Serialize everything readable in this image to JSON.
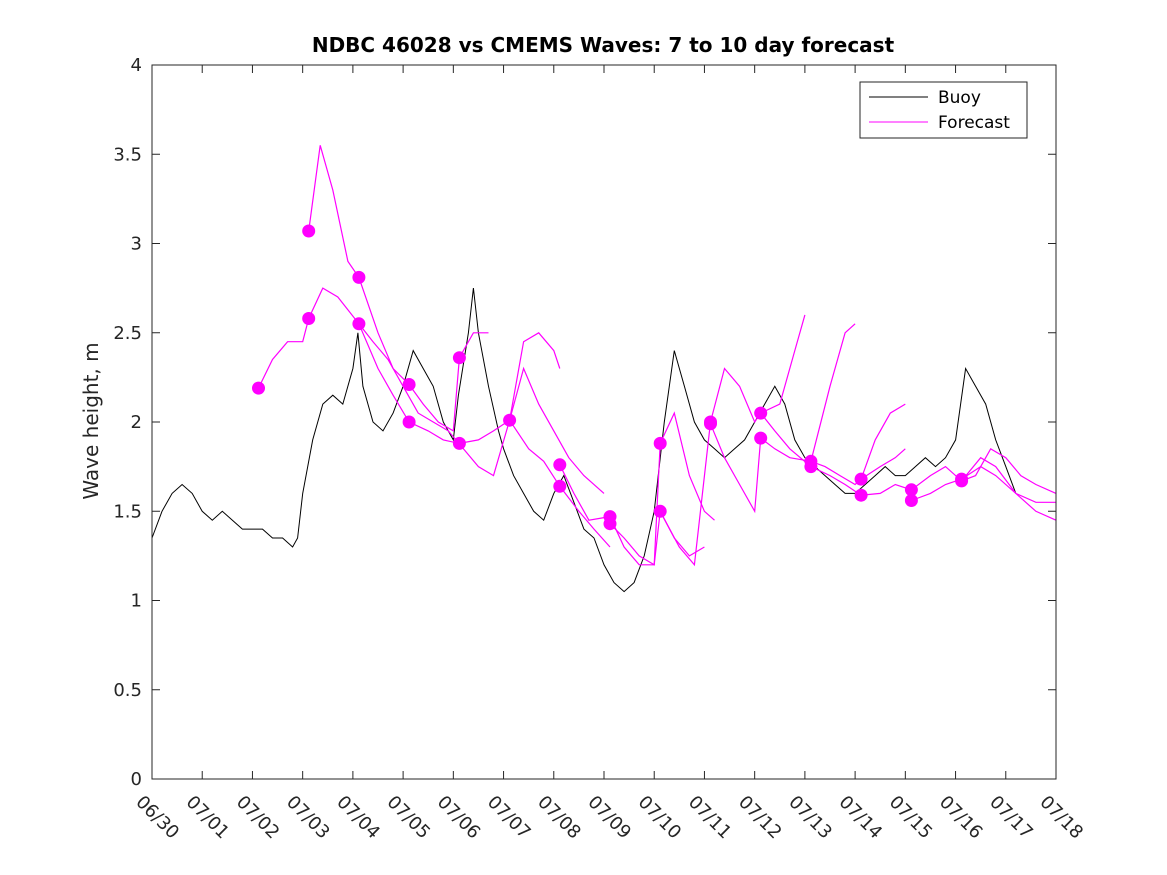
{
  "chart_data": {
    "type": "line",
    "title": "NDBC 46028 vs CMEMS Waves: 7 to 10 day forecast",
    "xlabel": "",
    "ylabel": "Wave height, m",
    "xlim": [
      0,
      18
    ],
    "ylim": [
      0,
      4
    ],
    "x_ticks": [
      0,
      1,
      2,
      3,
      4,
      5,
      6,
      7,
      8,
      9,
      10,
      11,
      12,
      13,
      14,
      15,
      16,
      17,
      18
    ],
    "x_tick_labels": [
      "06/30",
      "07/01",
      "07/02",
      "07/03",
      "07/04",
      "07/05",
      "07/06",
      "07/07",
      "07/08",
      "07/09",
      "07/10",
      "07/11",
      "07/12",
      "07/13",
      "07/14",
      "07/15",
      "07/16",
      "07/17",
      "07/18"
    ],
    "y_ticks": [
      0,
      0.5,
      1,
      1.5,
      2,
      2.5,
      3,
      3.5,
      4
    ],
    "y_tick_labels": [
      "0",
      "0.5",
      "1",
      "1.5",
      "2",
      "2.5",
      "3",
      "3.5",
      "4"
    ],
    "grid": false,
    "legend": {
      "placement": "top-right",
      "entries": [
        {
          "label": "Buoy",
          "color": "#000000"
        },
        {
          "label": "Forecast",
          "color": "#ff00ff"
        }
      ]
    },
    "colors": {
      "buoy": "#000000",
      "forecast": "#ff00ff"
    },
    "series": [
      {
        "name": "Buoy",
        "color": "#000000",
        "points": [
          [
            0,
            1.35
          ],
          [
            0.2,
            1.5
          ],
          [
            0.4,
            1.6
          ],
          [
            0.6,
            1.65
          ],
          [
            0.8,
            1.6
          ],
          [
            1.0,
            1.5
          ],
          [
            1.2,
            1.45
          ],
          [
            1.4,
            1.5
          ],
          [
            1.6,
            1.45
          ],
          [
            1.8,
            1.4
          ],
          [
            2.0,
            1.4
          ],
          [
            2.2,
            1.4
          ],
          [
            2.4,
            1.35
          ],
          [
            2.6,
            1.35
          ],
          [
            2.8,
            1.3
          ],
          [
            2.9,
            1.35
          ],
          [
            3.0,
            1.6
          ],
          [
            3.2,
            1.9
          ],
          [
            3.4,
            2.1
          ],
          [
            3.6,
            2.15
          ],
          [
            3.8,
            2.1
          ],
          [
            4.0,
            2.3
          ],
          [
            4.1,
            2.5
          ],
          [
            4.2,
            2.2
          ],
          [
            4.4,
            2.0
          ],
          [
            4.6,
            1.95
          ],
          [
            4.8,
            2.05
          ],
          [
            5.0,
            2.2
          ],
          [
            5.2,
            2.4
          ],
          [
            5.4,
            2.3
          ],
          [
            5.6,
            2.2
          ],
          [
            5.8,
            2.0
          ],
          [
            6.0,
            1.9
          ],
          [
            6.1,
            2.15
          ],
          [
            6.3,
            2.5
          ],
          [
            6.4,
            2.75
          ],
          [
            6.5,
            2.5
          ],
          [
            6.7,
            2.2
          ],
          [
            6.9,
            1.95
          ],
          [
            7.0,
            1.85
          ],
          [
            7.2,
            1.7
          ],
          [
            7.4,
            1.6
          ],
          [
            7.6,
            1.5
          ],
          [
            7.8,
            1.45
          ],
          [
            8.0,
            1.6
          ],
          [
            8.2,
            1.7
          ],
          [
            8.4,
            1.55
          ],
          [
            8.6,
            1.4
          ],
          [
            8.8,
            1.35
          ],
          [
            9.0,
            1.2
          ],
          [
            9.2,
            1.1
          ],
          [
            9.4,
            1.05
          ],
          [
            9.6,
            1.1
          ],
          [
            9.8,
            1.25
          ],
          [
            10.0,
            1.5
          ],
          [
            10.2,
            2.0
          ],
          [
            10.4,
            2.4
          ],
          [
            10.6,
            2.2
          ],
          [
            10.8,
            2.0
          ],
          [
            11.0,
            1.9
          ],
          [
            11.2,
            1.85
          ],
          [
            11.4,
            1.8
          ],
          [
            11.6,
            1.85
          ],
          [
            11.8,
            1.9
          ],
          [
            12.0,
            2.0
          ],
          [
            12.2,
            2.1
          ],
          [
            12.4,
            2.2
          ],
          [
            12.6,
            2.1
          ],
          [
            12.8,
            1.9
          ],
          [
            13.0,
            1.8
          ],
          [
            13.2,
            1.75
          ],
          [
            13.4,
            1.7
          ],
          [
            13.6,
            1.65
          ],
          [
            13.8,
            1.6
          ],
          [
            14.0,
            1.6
          ],
          [
            14.2,
            1.65
          ],
          [
            14.4,
            1.7
          ],
          [
            14.6,
            1.75
          ],
          [
            14.8,
            1.7
          ],
          [
            15.0,
            1.7
          ],
          [
            15.2,
            1.75
          ],
          [
            15.4,
            1.8
          ],
          [
            15.6,
            1.75
          ],
          [
            15.8,
            1.8
          ],
          [
            16.0,
            1.9
          ],
          [
            16.2,
            2.3
          ],
          [
            16.4,
            2.2
          ],
          [
            16.6,
            2.1
          ],
          [
            16.8,
            1.9
          ],
          [
            17.0,
            1.75
          ],
          [
            17.2,
            1.6
          ]
        ]
      },
      {
        "name": "Forecast",
        "color": "#ff00ff",
        "markers": [
          [
            2.12,
            2.19
          ],
          [
            3.12,
            3.07
          ],
          [
            3.12,
            2.58
          ],
          [
            4.12,
            2.81
          ],
          [
            4.12,
            2.55
          ],
          [
            5.12,
            2.21
          ],
          [
            5.12,
            2.0
          ],
          [
            6.12,
            2.36
          ],
          [
            6.12,
            1.88
          ],
          [
            7.12,
            2.01
          ],
          [
            8.12,
            1.76
          ],
          [
            8.12,
            1.64
          ],
          [
            9.12,
            1.47
          ],
          [
            9.12,
            1.43
          ],
          [
            10.12,
            1.88
          ],
          [
            10.12,
            1.5
          ],
          [
            11.12,
            2.0
          ],
          [
            11.12,
            1.99
          ],
          [
            12.12,
            2.05
          ],
          [
            12.12,
            1.91
          ],
          [
            13.12,
            1.78
          ],
          [
            13.12,
            1.75
          ],
          [
            14.12,
            1.68
          ],
          [
            14.12,
            1.59
          ],
          [
            15.12,
            1.62
          ],
          [
            15.12,
            1.56
          ],
          [
            16.12,
            1.67
          ],
          [
            16.12,
            1.68
          ]
        ],
        "lines": [
          [
            [
              2.12,
              2.19
            ],
            [
              2.4,
              2.35
            ],
            [
              2.7,
              2.45
            ],
            [
              3.0,
              2.45
            ],
            [
              3.12,
              2.58
            ],
            [
              3.4,
              2.75
            ],
            [
              3.7,
              2.7
            ],
            [
              4.12,
              2.55
            ],
            [
              4.5,
              2.3
            ],
            [
              4.8,
              2.15
            ],
            [
              5.12,
              2.0
            ],
            [
              5.5,
              1.95
            ],
            [
              5.8,
              1.9
            ],
            [
              6.12,
              1.88
            ],
            [
              6.5,
              1.9
            ],
            [
              6.8,
              1.95
            ],
            [
              7.12,
              2.01
            ],
            [
              7.5,
              1.85
            ],
            [
              7.8,
              1.78
            ],
            [
              8.12,
              1.64
            ],
            [
              8.5,
              1.5
            ],
            [
              8.8,
              1.4
            ],
            [
              9.12,
              1.3
            ]
          ],
          [
            [
              3.12,
              3.07
            ],
            [
              3.35,
              3.55
            ],
            [
              3.6,
              3.3
            ],
            [
              3.9,
              2.9
            ],
            [
              4.12,
              2.81
            ],
            [
              4.5,
              2.5
            ],
            [
              4.8,
              2.3
            ],
            [
              5.12,
              2.21
            ],
            [
              5.4,
              2.1
            ],
            [
              5.7,
              2.0
            ],
            [
              6.0,
              1.95
            ],
            [
              6.12,
              2.36
            ],
            [
              6.4,
              2.5
            ],
            [
              6.7,
              2.5
            ]
          ],
          [
            [
              4.12,
              2.55
            ],
            [
              4.4,
              2.45
            ],
            [
              4.7,
              2.35
            ],
            [
              5.0,
              2.2
            ],
            [
              5.3,
              2.05
            ],
            [
              5.6,
              2.0
            ],
            [
              5.9,
              1.95
            ],
            [
              6.2,
              1.85
            ],
            [
              6.5,
              1.75
            ],
            [
              6.8,
              1.7
            ],
            [
              7.12,
              2.01
            ],
            [
              7.4,
              2.45
            ],
            [
              7.7,
              2.5
            ],
            [
              8.0,
              2.4
            ],
            [
              8.12,
              2.3
            ]
          ],
          [
            [
              7.12,
              2.01
            ],
            [
              7.4,
              2.3
            ],
            [
              7.7,
              2.1
            ],
            [
              8.0,
              1.95
            ],
            [
              8.3,
              1.8
            ],
            [
              8.6,
              1.7
            ],
            [
              9.0,
              1.6
            ]
          ],
          [
            [
              8.12,
              1.76
            ],
            [
              8.4,
              1.6
            ],
            [
              8.7,
              1.45
            ],
            [
              9.12,
              1.47
            ],
            [
              9.4,
              1.3
            ],
            [
              9.7,
              1.2
            ],
            [
              10.0,
              1.2
            ],
            [
              10.12,
              1.88
            ],
            [
              10.4,
              2.05
            ],
            [
              10.7,
              1.7
            ],
            [
              11.0,
              1.5
            ],
            [
              11.2,
              1.45
            ]
          ],
          [
            [
              9.12,
              1.43
            ],
            [
              9.4,
              1.35
            ],
            [
              9.7,
              1.25
            ],
            [
              10.0,
              1.2
            ],
            [
              10.12,
              1.5
            ],
            [
              10.4,
              1.35
            ],
            [
              10.7,
              1.25
            ],
            [
              11.0,
              1.3
            ]
          ],
          [
            [
              10.12,
              1.5
            ],
            [
              10.5,
              1.3
            ],
            [
              10.8,
              1.2
            ],
            [
              11.12,
              2.0
            ],
            [
              11.4,
              2.3
            ],
            [
              11.7,
              2.2
            ],
            [
              12.0,
              2.0
            ],
            [
              12.12,
              2.05
            ],
            [
              12.5,
              2.1
            ],
            [
              12.8,
              2.4
            ],
            [
              13.0,
              2.6
            ]
          ],
          [
            [
              11.12,
              1.99
            ],
            [
              11.4,
              1.8
            ],
            [
              11.7,
              1.65
            ],
            [
              12.0,
              1.5
            ],
            [
              12.12,
              1.91
            ],
            [
              12.4,
              1.85
            ],
            [
              12.7,
              1.8
            ],
            [
              13.12,
              1.78
            ],
            [
              13.4,
              1.75
            ],
            [
              13.7,
              1.7
            ],
            [
              14.0,
              1.65
            ],
            [
              14.12,
              1.68
            ],
            [
              14.5,
              1.75
            ],
            [
              14.8,
              1.8
            ],
            [
              15.0,
              1.85
            ]
          ],
          [
            [
              12.12,
              2.05
            ],
            [
              12.4,
              1.95
            ],
            [
              12.7,
              1.85
            ],
            [
              13.12,
              1.75
            ],
            [
              13.5,
              1.7
            ],
            [
              13.8,
              1.65
            ],
            [
              14.12,
              1.59
            ],
            [
              14.5,
              1.6
            ],
            [
              14.8,
              1.65
            ],
            [
              15.12,
              1.62
            ],
            [
              15.5,
              1.7
            ],
            [
              15.8,
              1.75
            ],
            [
              16.12,
              1.67
            ],
            [
              16.5,
              1.8
            ],
            [
              16.8,
              1.75
            ],
            [
              17.2,
              1.6
            ],
            [
              17.6,
              1.5
            ],
            [
              18.0,
              1.45
            ]
          ],
          [
            [
              13.12,
              1.78
            ],
            [
              13.5,
              2.2
            ],
            [
              13.8,
              2.5
            ],
            [
              14.0,
              2.55
            ]
          ],
          [
            [
              14.12,
              1.68
            ],
            [
              14.4,
              1.9
            ],
            [
              14.7,
              2.05
            ],
            [
              15.0,
              2.1
            ]
          ],
          [
            [
              15.12,
              1.56
            ],
            [
              15.5,
              1.6
            ],
            [
              15.8,
              1.65
            ],
            [
              16.12,
              1.68
            ],
            [
              16.5,
              1.75
            ],
            [
              16.8,
              1.7
            ],
            [
              17.2,
              1.6
            ],
            [
              17.6,
              1.55
            ],
            [
              18.0,
              1.55
            ]
          ],
          [
            [
              16.12,
              1.67
            ],
            [
              16.4,
              1.7
            ],
            [
              16.7,
              1.85
            ],
            [
              17.0,
              1.8
            ],
            [
              17.3,
              1.7
            ],
            [
              17.6,
              1.65
            ],
            [
              18.0,
              1.6
            ]
          ]
        ]
      }
    ]
  }
}
